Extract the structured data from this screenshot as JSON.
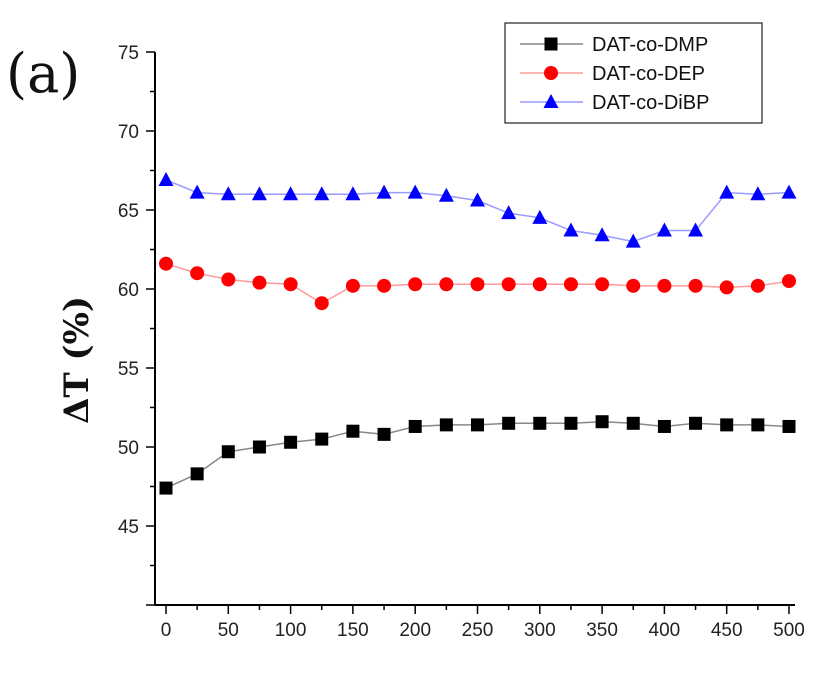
{
  "panel_label": "(a)",
  "chart_data": {
    "type": "line",
    "title": "",
    "xlabel": "",
    "ylabel": "ΔT (%)",
    "xlim": [
      0,
      500
    ],
    "ylim": [
      40,
      75
    ],
    "x_ticks": [
      0,
      50,
      100,
      150,
      200,
      250,
      300,
      350,
      400,
      450,
      500
    ],
    "y_ticks": [
      45,
      50,
      55,
      60,
      65,
      70,
      75
    ],
    "grid": false,
    "legend": "top-right",
    "x": [
      0,
      25,
      50,
      75,
      100,
      125,
      150,
      175,
      200,
      225,
      250,
      275,
      300,
      325,
      350,
      375,
      400,
      425,
      450,
      475,
      500
    ],
    "series": [
      {
        "name": "DAT-co-DMP",
        "marker": "square",
        "color": "#000000",
        "line_color": "#888888",
        "values": [
          47.4,
          48.3,
          49.7,
          50.0,
          50.3,
          50.5,
          51.0,
          50.8,
          51.3,
          51.4,
          51.4,
          51.5,
          51.5,
          51.5,
          51.6,
          51.5,
          51.3,
          51.5,
          51.4,
          51.4,
          51.3
        ]
      },
      {
        "name": "DAT-co-DEP",
        "marker": "circle",
        "color": "#ff0000",
        "line_color": "#ff9a9a",
        "values": [
          61.6,
          61.0,
          60.6,
          60.4,
          60.3,
          59.1,
          60.2,
          60.2,
          60.3,
          60.3,
          60.3,
          60.3,
          60.3,
          60.3,
          60.3,
          60.2,
          60.2,
          60.2,
          60.1,
          60.2,
          60.5
        ]
      },
      {
        "name": "DAT-co-DiBP",
        "marker": "triangle",
        "color": "#0000ff",
        "line_color": "#9a9aff",
        "values": [
          66.9,
          66.1,
          66.0,
          66.0,
          66.0,
          66.0,
          66.0,
          66.1,
          66.1,
          65.9,
          65.6,
          64.8,
          64.5,
          63.7,
          63.4,
          63.0,
          63.7,
          63.7,
          66.1,
          66.0,
          66.1
        ]
      }
    ]
  }
}
